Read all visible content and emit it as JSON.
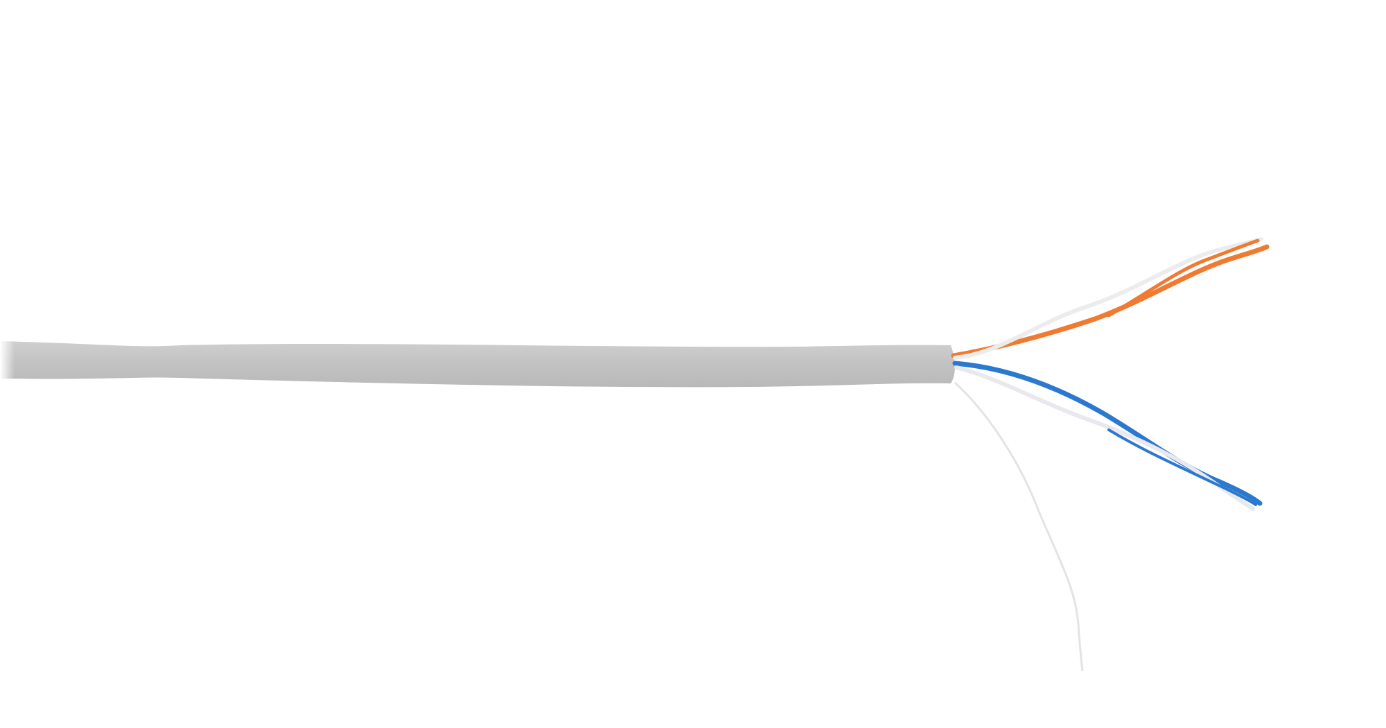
{
  "image": {
    "subject": "cable",
    "colors": {
      "background": "#ffffff",
      "jacket": "#c4c4c4",
      "jacket_shadow": "#b8b8b8",
      "pair_orange": "#f07a30",
      "pair_blue": "#2a78d0",
      "pair_white": "#eeeeee",
      "ripcord": "#e6e6e6"
    }
  }
}
